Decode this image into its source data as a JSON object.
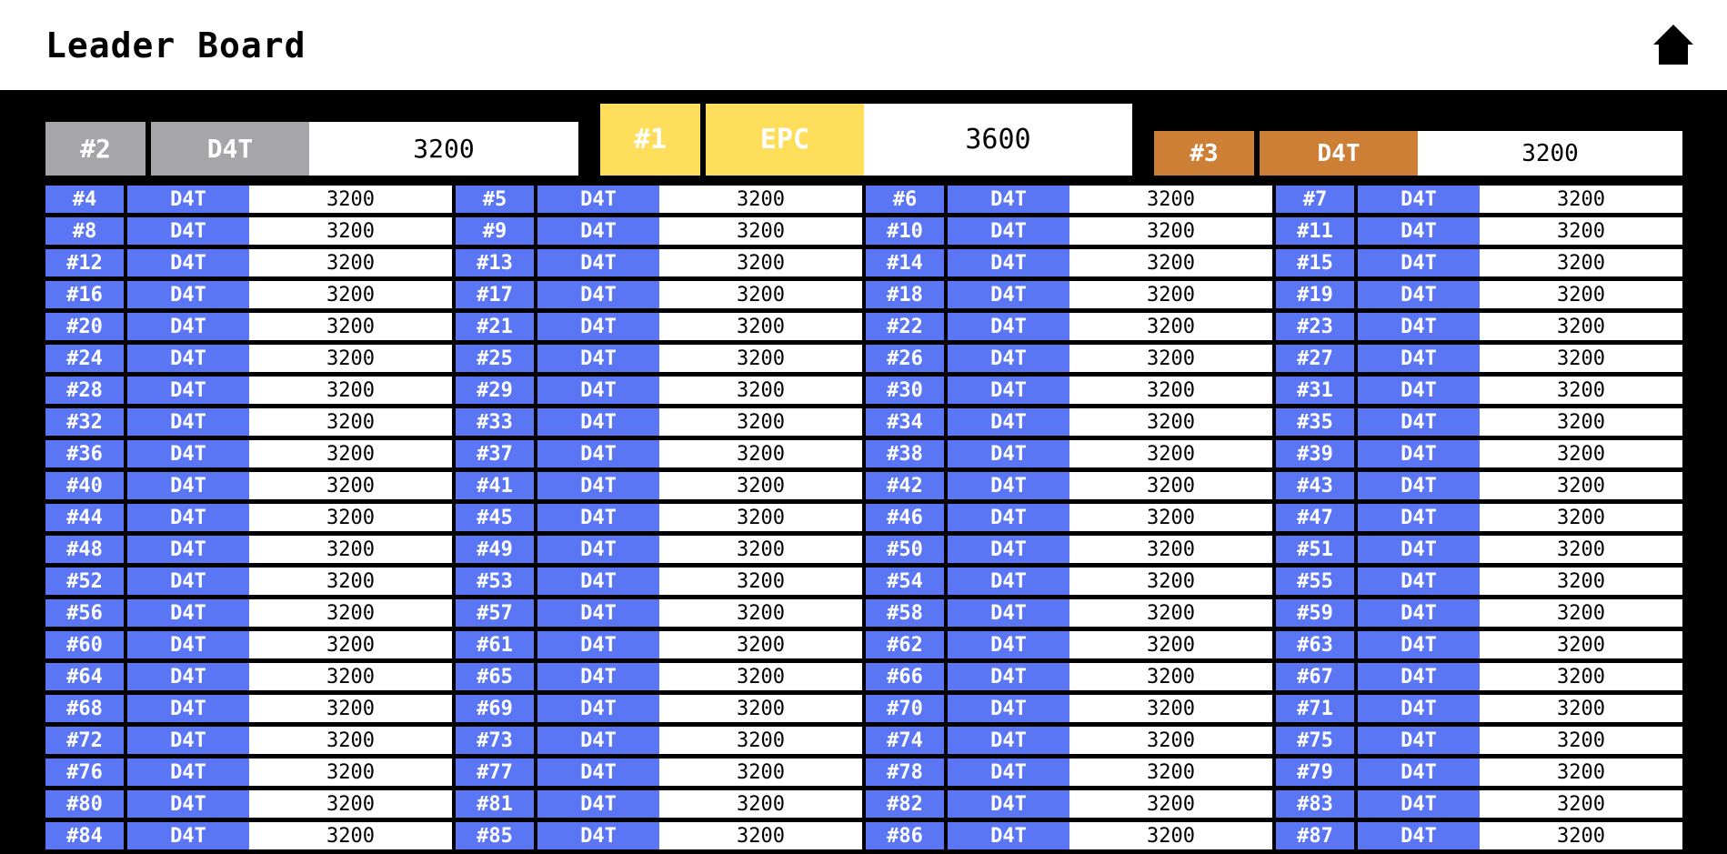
{
  "header": {
    "title": "Leader Board",
    "home_icon": "home-icon"
  },
  "colors": {
    "gold": "#fede5a",
    "silver": "#a6a6aa",
    "bronze": "#cd7f36",
    "entry_blue": "#5a76f5",
    "background": "#000000"
  },
  "podium": {
    "first": {
      "rank": "#1",
      "name": "EPC",
      "score": "3600"
    },
    "second": {
      "rank": "#2",
      "name": "D4T",
      "score": "3200"
    },
    "third": {
      "rank": "#3",
      "name": "D4T",
      "score": "3200"
    }
  },
  "entries": [
    {
      "rank": "#4",
      "name": "D4T",
      "score": "3200"
    },
    {
      "rank": "#5",
      "name": "D4T",
      "score": "3200"
    },
    {
      "rank": "#6",
      "name": "D4T",
      "score": "3200"
    },
    {
      "rank": "#7",
      "name": "D4T",
      "score": "3200"
    },
    {
      "rank": "#8",
      "name": "D4T",
      "score": "3200"
    },
    {
      "rank": "#9",
      "name": "D4T",
      "score": "3200"
    },
    {
      "rank": "#10",
      "name": "D4T",
      "score": "3200"
    },
    {
      "rank": "#11",
      "name": "D4T",
      "score": "3200"
    },
    {
      "rank": "#12",
      "name": "D4T",
      "score": "3200"
    },
    {
      "rank": "#13",
      "name": "D4T",
      "score": "3200"
    },
    {
      "rank": "#14",
      "name": "D4T",
      "score": "3200"
    },
    {
      "rank": "#15",
      "name": "D4T",
      "score": "3200"
    },
    {
      "rank": "#16",
      "name": "D4T",
      "score": "3200"
    },
    {
      "rank": "#17",
      "name": "D4T",
      "score": "3200"
    },
    {
      "rank": "#18",
      "name": "D4T",
      "score": "3200"
    },
    {
      "rank": "#19",
      "name": "D4T",
      "score": "3200"
    },
    {
      "rank": "#20",
      "name": "D4T",
      "score": "3200"
    },
    {
      "rank": "#21",
      "name": "D4T",
      "score": "3200"
    },
    {
      "rank": "#22",
      "name": "D4T",
      "score": "3200"
    },
    {
      "rank": "#23",
      "name": "D4T",
      "score": "3200"
    },
    {
      "rank": "#24",
      "name": "D4T",
      "score": "3200"
    },
    {
      "rank": "#25",
      "name": "D4T",
      "score": "3200"
    },
    {
      "rank": "#26",
      "name": "D4T",
      "score": "3200"
    },
    {
      "rank": "#27",
      "name": "D4T",
      "score": "3200"
    },
    {
      "rank": "#28",
      "name": "D4T",
      "score": "3200"
    },
    {
      "rank": "#29",
      "name": "D4T",
      "score": "3200"
    },
    {
      "rank": "#30",
      "name": "D4T",
      "score": "3200"
    },
    {
      "rank": "#31",
      "name": "D4T",
      "score": "3200"
    },
    {
      "rank": "#32",
      "name": "D4T",
      "score": "3200"
    },
    {
      "rank": "#33",
      "name": "D4T",
      "score": "3200"
    },
    {
      "rank": "#34",
      "name": "D4T",
      "score": "3200"
    },
    {
      "rank": "#35",
      "name": "D4T",
      "score": "3200"
    },
    {
      "rank": "#36",
      "name": "D4T",
      "score": "3200"
    },
    {
      "rank": "#37",
      "name": "D4T",
      "score": "3200"
    },
    {
      "rank": "#38",
      "name": "D4T",
      "score": "3200"
    },
    {
      "rank": "#39",
      "name": "D4T",
      "score": "3200"
    },
    {
      "rank": "#40",
      "name": "D4T",
      "score": "3200"
    },
    {
      "rank": "#41",
      "name": "D4T",
      "score": "3200"
    },
    {
      "rank": "#42",
      "name": "D4T",
      "score": "3200"
    },
    {
      "rank": "#43",
      "name": "D4T",
      "score": "3200"
    },
    {
      "rank": "#44",
      "name": "D4T",
      "score": "3200"
    },
    {
      "rank": "#45",
      "name": "D4T",
      "score": "3200"
    },
    {
      "rank": "#46",
      "name": "D4T",
      "score": "3200"
    },
    {
      "rank": "#47",
      "name": "D4T",
      "score": "3200"
    },
    {
      "rank": "#48",
      "name": "D4T",
      "score": "3200"
    },
    {
      "rank": "#49",
      "name": "D4T",
      "score": "3200"
    },
    {
      "rank": "#50",
      "name": "D4T",
      "score": "3200"
    },
    {
      "rank": "#51",
      "name": "D4T",
      "score": "3200"
    },
    {
      "rank": "#52",
      "name": "D4T",
      "score": "3200"
    },
    {
      "rank": "#53",
      "name": "D4T",
      "score": "3200"
    },
    {
      "rank": "#54",
      "name": "D4T",
      "score": "3200"
    },
    {
      "rank": "#55",
      "name": "D4T",
      "score": "3200"
    },
    {
      "rank": "#56",
      "name": "D4T",
      "score": "3200"
    },
    {
      "rank": "#57",
      "name": "D4T",
      "score": "3200"
    },
    {
      "rank": "#58",
      "name": "D4T",
      "score": "3200"
    },
    {
      "rank": "#59",
      "name": "D4T",
      "score": "3200"
    },
    {
      "rank": "#60",
      "name": "D4T",
      "score": "3200"
    },
    {
      "rank": "#61",
      "name": "D4T",
      "score": "3200"
    },
    {
      "rank": "#62",
      "name": "D4T",
      "score": "3200"
    },
    {
      "rank": "#63",
      "name": "D4T",
      "score": "3200"
    },
    {
      "rank": "#64",
      "name": "D4T",
      "score": "3200"
    },
    {
      "rank": "#65",
      "name": "D4T",
      "score": "3200"
    },
    {
      "rank": "#66",
      "name": "D4T",
      "score": "3200"
    },
    {
      "rank": "#67",
      "name": "D4T",
      "score": "3200"
    },
    {
      "rank": "#68",
      "name": "D4T",
      "score": "3200"
    },
    {
      "rank": "#69",
      "name": "D4T",
      "score": "3200"
    },
    {
      "rank": "#70",
      "name": "D4T",
      "score": "3200"
    },
    {
      "rank": "#71",
      "name": "D4T",
      "score": "3200"
    },
    {
      "rank": "#72",
      "name": "D4T",
      "score": "3200"
    },
    {
      "rank": "#73",
      "name": "D4T",
      "score": "3200"
    },
    {
      "rank": "#74",
      "name": "D4T",
      "score": "3200"
    },
    {
      "rank": "#75",
      "name": "D4T",
      "score": "3200"
    },
    {
      "rank": "#76",
      "name": "D4T",
      "score": "3200"
    },
    {
      "rank": "#77",
      "name": "D4T",
      "score": "3200"
    },
    {
      "rank": "#78",
      "name": "D4T",
      "score": "3200"
    },
    {
      "rank": "#79",
      "name": "D4T",
      "score": "3200"
    },
    {
      "rank": "#80",
      "name": "D4T",
      "score": "3200"
    },
    {
      "rank": "#81",
      "name": "D4T",
      "score": "3200"
    },
    {
      "rank": "#82",
      "name": "D4T",
      "score": "3200"
    },
    {
      "rank": "#83",
      "name": "D4T",
      "score": "3200"
    },
    {
      "rank": "#84",
      "name": "D4T",
      "score": "3200"
    },
    {
      "rank": "#85",
      "name": "D4T",
      "score": "3200"
    },
    {
      "rank": "#86",
      "name": "D4T",
      "score": "3200"
    },
    {
      "rank": "#87",
      "name": "D4T",
      "score": "3200"
    }
  ]
}
